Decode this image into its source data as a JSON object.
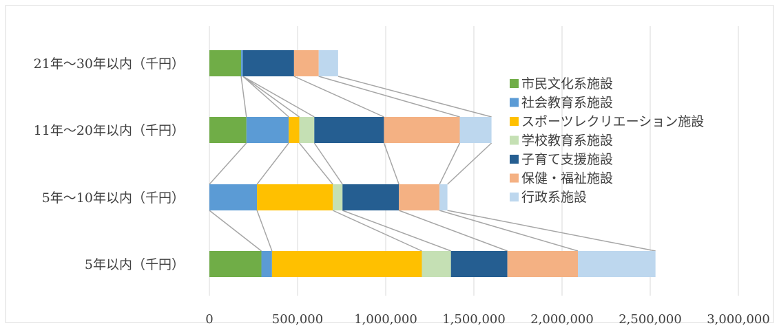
{
  "chart_data": {
    "type": "bar",
    "orientation": "horizontal",
    "stacked": true,
    "categories": [
      "21年～30年以内（千円）",
      "11年～20年以内（千円）",
      "5年～10年以内（千円）",
      "5年以内（千円）"
    ],
    "series": [
      {
        "name": "市民文化系施設",
        "color": "#70AD47",
        "values": [
          180000,
          210000,
          0,
          295000
        ]
      },
      {
        "name": "社会教育系施設",
        "color": "#5B9BD5",
        "values": [
          10000,
          240000,
          270000,
          60000
        ]
      },
      {
        "name": "スポーツレクリエーション施設",
        "color": "#FFC000",
        "values": [
          0,
          60000,
          430000,
          850000
        ]
      },
      {
        "name": "学校教育系施設",
        "color": "#C5E0B4",
        "values": [
          0,
          85000,
          55000,
          165000
        ]
      },
      {
        "name": "子育て支援施設",
        "color": "#255E91",
        "values": [
          290000,
          395000,
          320000,
          320000
        ]
      },
      {
        "name": "保健・福祉施設",
        "color": "#F4B183",
        "values": [
          140000,
          430000,
          230000,
          400000
        ]
      },
      {
        "name": "行政系施設",
        "color": "#BDD7EE",
        "values": [
          110000,
          180000,
          45000,
          440000
        ]
      }
    ],
    "x_ticks": [
      "0",
      "500,000",
      "1,000,000",
      "1,500,000",
      "2,000,000",
      "2,500,000",
      "3,000,000"
    ],
    "xlim": [
      0,
      3000000
    ],
    "grid": true,
    "series_lines": true,
    "legend_position": "right"
  }
}
